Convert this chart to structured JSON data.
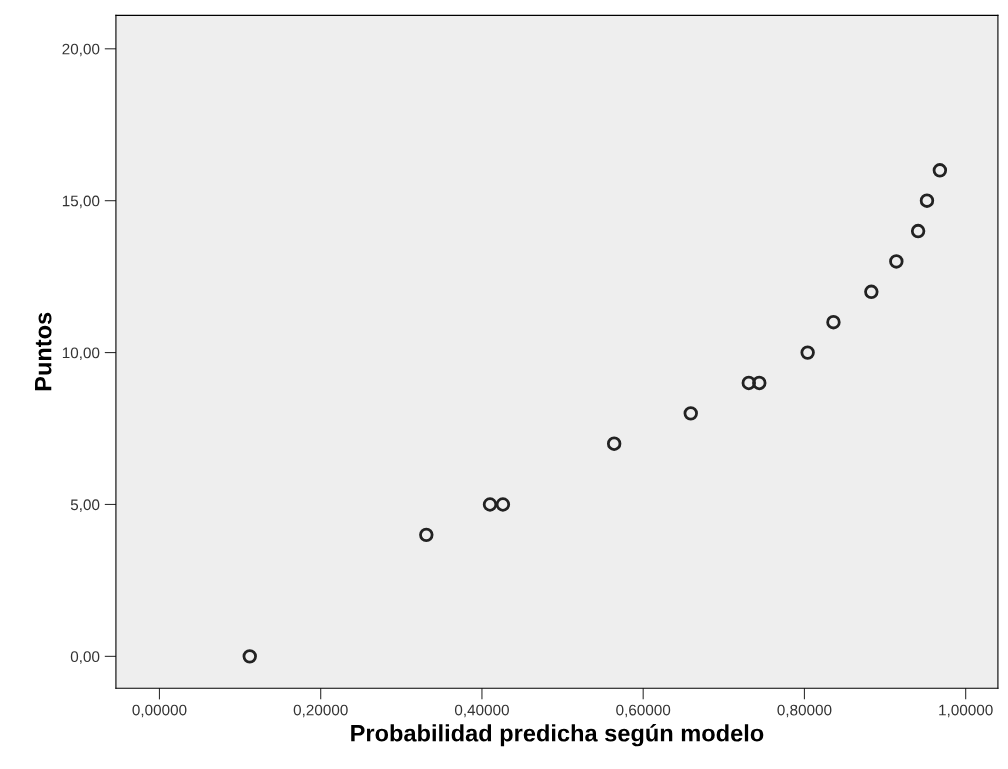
{
  "chart_data": {
    "type": "scatter",
    "xlabel": "Probabilidad predicha según modelo",
    "ylabel": "Puntos",
    "x": [
      0.112,
      0.331,
      0.41,
      0.426,
      0.564,
      0.659,
      0.731,
      0.744,
      0.804,
      0.836,
      0.883,
      0.914,
      0.941,
      0.952,
      0.968
    ],
    "series": [
      {
        "color": "#222222",
        "values": [
          0,
          4,
          5,
          5,
          7,
          8,
          9,
          9,
          10,
          11,
          12,
          13,
          14,
          15,
          16
        ]
      }
    ],
    "marker": "circle",
    "grid": false,
    "xlim": [
      -0.054,
      1.04
    ],
    "ylim": [
      -1.05,
      21.1
    ],
    "xticks": [
      {
        "value": 0,
        "label": "0,00000"
      },
      {
        "value": 0.2,
        "label": "0,20000"
      },
      {
        "value": 0.4,
        "label": "0,40000"
      },
      {
        "value": 0.6,
        "label": "0,60000"
      },
      {
        "value": 0.8,
        "label": "0,80000"
      },
      {
        "value": 1,
        "label": "1,00000"
      }
    ],
    "yticks": [
      {
        "value": 0,
        "label": "0,00"
      },
      {
        "value": 5,
        "label": "5,00"
      },
      {
        "value": 10,
        "label": "10,00"
      },
      {
        "value": 15,
        "label": "15,00"
      },
      {
        "value": 20,
        "label": "20,00"
      }
    ]
  }
}
